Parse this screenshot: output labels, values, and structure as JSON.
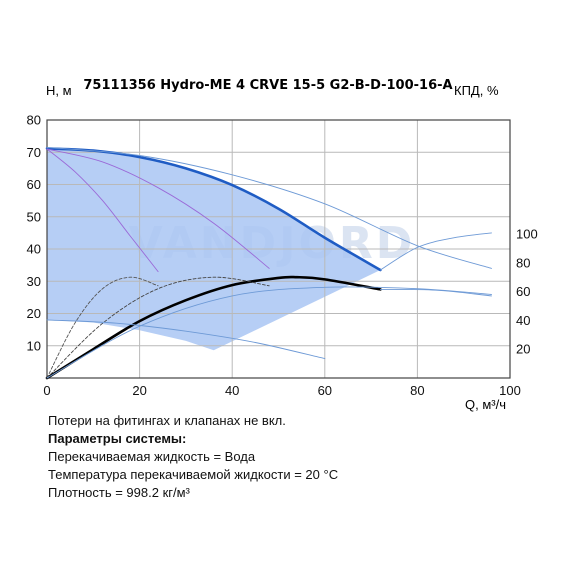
{
  "chart_data": {
    "type": "line",
    "title": "75111356 Hydro-ME 4 CRVE 15-5 G2-B-D-100-16-A",
    "ylabel_left": "H, м",
    "ylabel_right": "КПД, %",
    "xlabel": "Q, м³/ч",
    "xlim": [
      0,
      100
    ],
    "ylim_left": [
      0,
      80
    ],
    "ylim_right": [
      0,
      100
    ],
    "x_ticks": [
      "0",
      "20",
      "40",
      "60",
      "80",
      "100"
    ],
    "y_ticks_left": [
      "10",
      "20",
      "30",
      "40",
      "50",
      "60",
      "70",
      "80"
    ],
    "y_ticks_right": [
      "20",
      "40",
      "60",
      "80",
      "100"
    ],
    "grid": true,
    "watermark": "VANDJORD",
    "operating_range": {
      "upper": [
        [
          0,
          71.2
        ],
        [
          10,
          70.5
        ],
        [
          20,
          68.5
        ],
        [
          30,
          65
        ],
        [
          40,
          59.8
        ],
        [
          50,
          52.5
        ],
        [
          60,
          43.5
        ],
        [
          72,
          33.5
        ]
      ],
      "lower": [
        [
          0,
          18
        ],
        [
          10,
          17.2
        ],
        [
          20,
          14.8
        ],
        [
          30,
          11.5
        ],
        [
          36,
          8.6
        ]
      ]
    },
    "series": [
      {
        "role": "head_max",
        "axis": "left",
        "color": "#1f5cc4",
        "x": [
          0,
          10,
          20,
          30,
          40,
          50,
          60,
          72
        ],
        "y": [
          71.2,
          70.5,
          68.5,
          65,
          59.8,
          52.5,
          43.5,
          33.5
        ]
      },
      {
        "role": "efficiency_max",
        "axis": "right",
        "color": "#000000",
        "x": [
          0,
          10,
          20,
          30,
          40,
          50,
          54,
          60,
          72
        ],
        "y": [
          0,
          20,
          39.5,
          54,
          64.5,
          69.5,
          70,
          68.5,
          61.5
        ]
      },
      {
        "role": "head_extended",
        "axis": "left",
        "color": "#6e9ad6",
        "x": [
          72,
          80,
          88,
          96
        ],
        "y": [
          33.5,
          40.5,
          43.5,
          45
        ]
      },
      {
        "role": "head_intermediate_1",
        "axis": "left",
        "color": "#9a6ad8",
        "x": [
          0,
          6,
          12,
          18,
          24
        ],
        "y": [
          71,
          64,
          55,
          44,
          33
        ]
      },
      {
        "role": "head_intermediate_2",
        "axis": "left",
        "color": "#9a6ad8",
        "x": [
          0,
          12,
          24,
          36,
          48
        ],
        "y": [
          71,
          67,
          59,
          48,
          34
        ]
      },
      {
        "role": "head_upper_speed",
        "axis": "left",
        "color": "#6e9ad6",
        "x": [
          0,
          20,
          40,
          60,
          80,
          96
        ],
        "y": [
          71.5,
          69,
          63,
          54,
          41,
          34
        ]
      },
      {
        "role": "efficiency_intermediate_1",
        "axis": "right",
        "color": "#555555",
        "x": [
          0,
          6,
          12,
          18,
          24
        ],
        "y": [
          0,
          38,
          62,
          70,
          64
        ]
      },
      {
        "role": "efficiency_intermediate_2",
        "axis": "right",
        "color": "#444444",
        "x": [
          0,
          12,
          24,
          36,
          48
        ],
        "y": [
          0,
          38,
          62,
          70,
          64
        ]
      },
      {
        "role": "efficiency_extended",
        "axis": "right",
        "color": "#6e9ad6",
        "x": [
          72,
          84,
          96
        ],
        "y": [
          61.5,
          61,
          57
        ]
      },
      {
        "role": "head_min",
        "axis": "left",
        "color": "#6e9ad6",
        "x": [
          0,
          15,
          30,
          45,
          60
        ],
        "y": [
          18,
          17,
          14.5,
          11,
          6
        ]
      },
      {
        "role": "efficiency_low",
        "axis": "right",
        "color": "#6e9ad6",
        "x": [
          0,
          20,
          40,
          60,
          80,
          96
        ],
        "y": [
          0,
          36,
          57,
          63,
          62,
          58
        ]
      }
    ]
  },
  "notes": {
    "line1": "Потери на фитингах и клапанах не вкл.",
    "heading": "Параметры системы:",
    "fluid": "Перекачиваемая жидкость = Вода",
    "temperature": "Температура перекачиваемой жидкости = 20 °C",
    "density": "Плотность = 998.2 кг/м³"
  },
  "colors": {
    "fill": "#a9c6f3",
    "grid": "#b9b9b9",
    "frame": "#444444"
  }
}
